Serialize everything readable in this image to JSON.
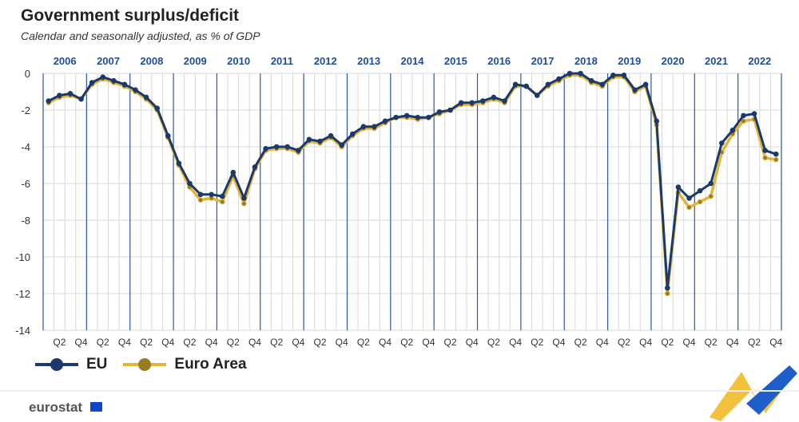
{
  "header": {
    "title": "Government surplus/deficit",
    "subtitle": "Calendar and seasonally adjusted, as % of GDP"
  },
  "branding": {
    "logo": "eurostat"
  },
  "colors": {
    "eu": "#1b3a6b",
    "euro_area": "#e0b53a",
    "grid": "#d8d8d8",
    "year_line": "#2a5aa6",
    "axis_text": "#333333",
    "year_text": "#1f4e9a"
  },
  "chart_data": {
    "type": "line",
    "title": "Government surplus/deficit",
    "subtitle": "Calendar and seasonally adjusted, as % of GDP",
    "xlabel": "",
    "ylabel": "",
    "ylim": [
      -14,
      0
    ],
    "yticks": [
      0,
      -2,
      -4,
      -6,
      -8,
      -10,
      -12,
      -14
    ],
    "years": [
      "2006",
      "2007",
      "2008",
      "2009",
      "2010",
      "2011",
      "2012",
      "2013",
      "2014",
      "2015",
      "2016",
      "2017",
      "2018",
      "2019",
      "2020",
      "2021",
      "2022"
    ],
    "quarter_tick_labels": [
      "Q2",
      "Q4"
    ],
    "grid": true,
    "legend_position": "bottom-left",
    "categories": [
      "2006Q1",
      "2006Q2",
      "2006Q3",
      "2006Q4",
      "2007Q1",
      "2007Q2",
      "2007Q3",
      "2007Q4",
      "2008Q1",
      "2008Q2",
      "2008Q3",
      "2008Q4",
      "2009Q1",
      "2009Q2",
      "2009Q3",
      "2009Q4",
      "2010Q1",
      "2010Q2",
      "2010Q3",
      "2010Q4",
      "2011Q1",
      "2011Q2",
      "2011Q3",
      "2011Q4",
      "2012Q1",
      "2012Q2",
      "2012Q3",
      "2012Q4",
      "2013Q1",
      "2013Q2",
      "2013Q3",
      "2013Q4",
      "2014Q1",
      "2014Q2",
      "2014Q3",
      "2014Q4",
      "2015Q1",
      "2015Q2",
      "2015Q3",
      "2015Q4",
      "2016Q1",
      "2016Q2",
      "2016Q3",
      "2016Q4",
      "2017Q1",
      "2017Q2",
      "2017Q3",
      "2017Q4",
      "2018Q1",
      "2018Q2",
      "2018Q3",
      "2018Q4",
      "2019Q1",
      "2019Q2",
      "2019Q3",
      "2019Q4",
      "2020Q1",
      "2020Q2",
      "2020Q3",
      "2020Q4",
      "2021Q1",
      "2021Q2",
      "2021Q3",
      "2021Q4",
      "2022Q1",
      "2022Q2",
      "2022Q3",
      "2022Q4"
    ],
    "series": [
      {
        "name": "EU",
        "color": "#1b3a6b",
        "values": [
          -1.5,
          -1.2,
          -1.1,
          -1.4,
          -0.5,
          -0.2,
          -0.4,
          -0.6,
          -0.9,
          -1.3,
          -1.9,
          -3.4,
          -4.9,
          -6.0,
          -6.6,
          -6.6,
          -6.7,
          -5.4,
          -6.8,
          -5.1,
          -4.1,
          -4.0,
          -4.0,
          -4.2,
          -3.6,
          -3.7,
          -3.4,
          -3.9,
          -3.3,
          -2.9,
          -2.9,
          -2.6,
          -2.4,
          -2.3,
          -2.4,
          -2.4,
          -2.1,
          -2.0,
          -1.6,
          -1.6,
          -1.5,
          -1.3,
          -1.5,
          -0.6,
          -0.7,
          -1.2,
          -0.6,
          -0.3,
          0.0,
          0.0,
          -0.4,
          -0.6,
          -0.1,
          -0.1,
          -0.9,
          -0.6,
          -2.6,
          -11.7,
          -6.2,
          -6.8,
          -6.4,
          -6.0,
          -3.8,
          -3.1,
          -2.3,
          -2.2,
          -4.2,
          -4.4
        ]
      },
      {
        "name": "Euro Area",
        "color": "#e0b53a",
        "values": [
          -1.6,
          -1.3,
          -1.2,
          -1.4,
          -0.6,
          -0.3,
          -0.5,
          -0.7,
          -1.0,
          -1.4,
          -2.0,
          -3.5,
          -5.0,
          -6.2,
          -6.9,
          -6.8,
          -7.0,
          -5.6,
          -7.1,
          -5.2,
          -4.2,
          -4.1,
          -4.1,
          -4.3,
          -3.7,
          -3.8,
          -3.5,
          -4.0,
          -3.4,
          -3.0,
          -3.0,
          -2.7,
          -2.4,
          -2.4,
          -2.5,
          -2.4,
          -2.2,
          -2.0,
          -1.7,
          -1.7,
          -1.6,
          -1.4,
          -1.6,
          -0.7,
          -0.7,
          -1.2,
          -0.7,
          -0.4,
          -0.1,
          -0.1,
          -0.5,
          -0.7,
          -0.2,
          -0.2,
          -1.0,
          -0.7,
          -2.8,
          -12.0,
          -6.5,
          -7.3,
          -7.0,
          -6.7,
          -4.3,
          -3.3,
          -2.6,
          -2.5,
          -4.6,
          -4.7
        ]
      }
    ]
  }
}
